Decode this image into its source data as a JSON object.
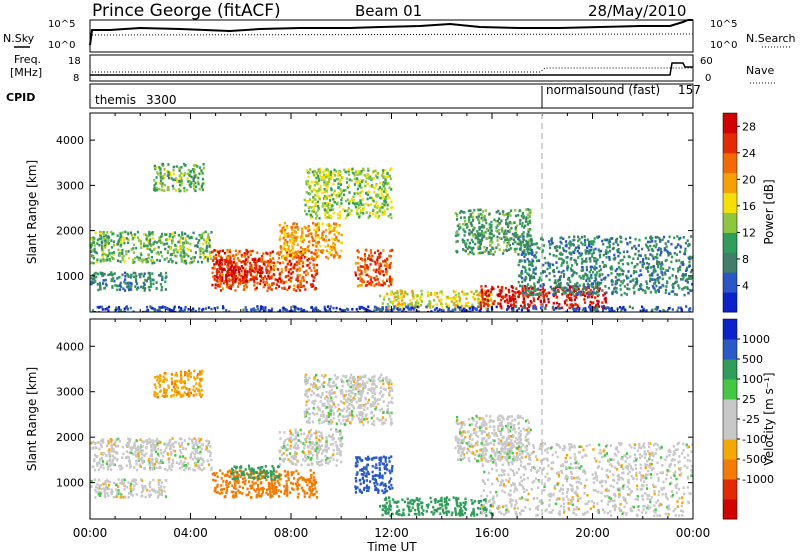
{
  "header": {
    "site": "Prince George (fitACF)",
    "beam": "Beam 01",
    "date": "28/May/2010"
  },
  "noise_panel": {
    "left_label": "N.Sky",
    "right_label": "N.Search",
    "left_ticks": [
      "10^5",
      "10^0"
    ],
    "right_ticks": [
      "10^5",
      "10^0"
    ]
  },
  "freq_panel": {
    "left_label_1": "Freq.",
    "left_label_2": "[MHz]",
    "right_label": "Nave",
    "left_ticks": [
      "18",
      "8"
    ],
    "right_ticks": [
      "60",
      "0"
    ]
  },
  "cpid_panel": {
    "label": "CPID",
    "modes": [
      {
        "name": "themis",
        "id": "3300",
        "start_hour": 0
      },
      {
        "name": "normalsound (fast)",
        "id": "157",
        "start_hour": 18
      }
    ]
  },
  "colors": {
    "power_scale": [
      "#0b22cc",
      "#2a56c8",
      "#3e7e6a",
      "#2f9e5a",
      "#8ec640",
      "#f5e000",
      "#f7a000",
      "#f46a00",
      "#e62a00",
      "#d40000"
    ],
    "velocity_scale": [
      "#d40000",
      "#e62a00",
      "#f47a00",
      "#f5a800",
      "#c8c8c8",
      "#c8c8c8",
      "#44c844",
      "#2f9e5a",
      "#2a5ac8",
      "#0b22cc"
    ]
  },
  "chart_data": [
    {
      "type": "heatmap",
      "title": "",
      "xlabel": "Time UT",
      "ylabel": "Slant Range [km]",
      "xlim": [
        0,
        24
      ],
      "ylim": [
        200,
        4600
      ],
      "x_ticks": [
        "00:00",
        "04:00",
        "08:00",
        "12:00",
        "16:00",
        "20:00",
        "00:00"
      ],
      "y_ticks": [
        "1000",
        "2000",
        "3000",
        "4000"
      ],
      "colorbar": {
        "label": "Power [dB]",
        "ticks": [
          "4",
          "8",
          "12",
          "16",
          "20",
          "24",
          "28"
        ],
        "range": [
          0,
          30
        ]
      },
      "regions": [
        {
          "t_start": 0.0,
          "t_end": 4.8,
          "range_start": 1300,
          "range_end": 2000,
          "value": 12
        },
        {
          "t_start": 0.0,
          "t_end": 3.0,
          "range_start": 700,
          "range_end": 1100,
          "value": 8
        },
        {
          "t_start": 2.5,
          "t_end": 4.5,
          "range_start": 2900,
          "range_end": 3500,
          "value": 12
        },
        {
          "t_start": 4.8,
          "t_end": 9.0,
          "range_start": 700,
          "range_end": 1600,
          "value": 24
        },
        {
          "t_start": 5.0,
          "t_end": 7.0,
          "range_start": 900,
          "range_end": 1400,
          "value": 28
        },
        {
          "t_start": 7.5,
          "t_end": 10.0,
          "range_start": 1400,
          "range_end": 2200,
          "value": 20
        },
        {
          "t_start": 8.5,
          "t_end": 12.0,
          "range_start": 2300,
          "range_end": 3400,
          "value": 14
        },
        {
          "t_start": 10.5,
          "t_end": 12.0,
          "range_start": 800,
          "range_end": 1600,
          "value": 24
        },
        {
          "t_start": 11.5,
          "t_end": 16.0,
          "range_start": 300,
          "range_end": 700,
          "value": 16
        },
        {
          "t_start": 14.5,
          "t_end": 17.5,
          "range_start": 1500,
          "range_end": 2500,
          "value": 10
        },
        {
          "t_start": 15.5,
          "t_end": 20.5,
          "range_start": 300,
          "range_end": 800,
          "value": 28
        },
        {
          "t_start": 17.0,
          "t_end": 24.0,
          "range_start": 600,
          "range_end": 1900,
          "value": 8
        },
        {
          "t_start": 0.0,
          "t_end": 24.0,
          "range_start": 200,
          "range_end": 350,
          "value": 4
        }
      ]
    },
    {
      "type": "heatmap",
      "title": "",
      "xlabel": "Time UT",
      "ylabel": "Slant Range [km]",
      "xlim": [
        0,
        24
      ],
      "ylim": [
        200,
        4600
      ],
      "x_ticks": [
        "00:00",
        "04:00",
        "08:00",
        "12:00",
        "16:00",
        "20:00",
        "00:00"
      ],
      "y_ticks": [
        "1000",
        "2000",
        "3000",
        "4000"
      ],
      "colorbar": {
        "label": "Velocity [m s⁻¹]",
        "ticks": [
          "1000",
          "500",
          "100",
          "25",
          "-25",
          "-100",
          "-500",
          "-1000"
        ]
      },
      "regions": [
        {
          "t_start": 0.0,
          "t_end": 4.8,
          "range_start": 1300,
          "range_end": 2000,
          "value": 0
        },
        {
          "t_start": 0.0,
          "t_end": 3.0,
          "range_start": 700,
          "range_end": 1100,
          "value": 0
        },
        {
          "t_start": 2.5,
          "t_end": 4.5,
          "range_start": 2900,
          "range_end": 3500,
          "value": -80
        },
        {
          "t_start": 4.8,
          "t_end": 9.0,
          "range_start": 700,
          "range_end": 1300,
          "value": -400
        },
        {
          "t_start": 5.5,
          "t_end": 7.5,
          "range_start": 1100,
          "range_end": 1400,
          "value": 150
        },
        {
          "t_start": 7.5,
          "t_end": 10.0,
          "range_start": 1400,
          "range_end": 2200,
          "value": 0
        },
        {
          "t_start": 8.5,
          "t_end": 12.0,
          "range_start": 2300,
          "range_end": 3400,
          "value": 0
        },
        {
          "t_start": 10.5,
          "t_end": 12.0,
          "range_start": 800,
          "range_end": 1600,
          "value": 600
        },
        {
          "t_start": 11.5,
          "t_end": 16.0,
          "range_start": 300,
          "range_end": 700,
          "value": 150
        },
        {
          "t_start": 14.5,
          "t_end": 17.5,
          "range_start": 1500,
          "range_end": 2500,
          "value": 0
        },
        {
          "t_start": 15.5,
          "t_end": 24.0,
          "range_start": 300,
          "range_end": 1900,
          "value": 0
        }
      ]
    }
  ]
}
